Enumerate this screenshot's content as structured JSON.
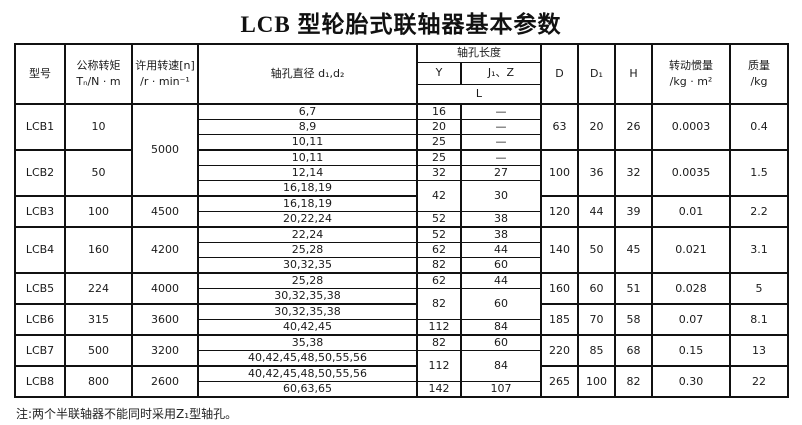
{
  "page": {
    "title": "LCB 型轮胎式联轴器基本参数",
    "note": "注:两个半联轴器不能同时采用Z₁型轴孔。"
  },
  "table": {
    "headers": {
      "model": "型号",
      "torque_l1": "公称转矩",
      "torque_l2": "Tₙ/N · m",
      "speed_l1": "许用转速[n]",
      "speed_l2": "/r · min⁻¹",
      "bore_diameter": "轴孔直径 d₁,d₂",
      "bore_length": "轴孔长度",
      "col_Y": "Y",
      "col_J1Z": "J₁、Z",
      "col_L": "L",
      "col_D": "D",
      "col_D1": "D₁",
      "col_H": "H",
      "inertia_l1": "转动惯量",
      "inertia_l2": "/kg · m²",
      "mass_l1": "质量",
      "mass_l2": "/kg"
    },
    "groups": [
      {
        "model": "LCB1",
        "torque": "10",
        "speed": "5000",
        "speed_span": 6,
        "D": "63",
        "D1": "20",
        "H": "26",
        "inertia": "0.0003",
        "mass": "0.4",
        "rows": [
          {
            "d": "6,7",
            "Y": "16",
            "J": "—"
          },
          {
            "d": "8,9",
            "Y": "20",
            "J": "—"
          },
          {
            "d": "10,11",
            "Y": "25",
            "J": "—"
          }
        ]
      },
      {
        "model": "LCB2",
        "torque": "50",
        "speed": null,
        "D": "100",
        "D1": "36",
        "H": "32",
        "inertia": "0.0035",
        "mass": "1.5",
        "rows": [
          {
            "d": "10,11",
            "Y": "25",
            "J": "—"
          },
          {
            "d": "12,14",
            "Y": "32",
            "J": "27"
          },
          {
            "d": "16,18,19",
            "Y": "42",
            "J": "30",
            "yj_span": 2
          }
        ]
      },
      {
        "model": "LCB3",
        "torque": "100",
        "speed": "4500",
        "D": "120",
        "D1": "44",
        "H": "39",
        "inertia": "0.01",
        "mass": "2.2",
        "rows": [
          {
            "d": "16,18,19",
            "yj_merged": true
          },
          {
            "d": "20,22,24",
            "Y": "52",
            "J": "38"
          }
        ]
      },
      {
        "model": "LCB4",
        "torque": "160",
        "speed": "4200",
        "D": "140",
        "D1": "50",
        "H": "45",
        "inertia": "0.021",
        "mass": "3.1",
        "rows": [
          {
            "d": "22,24",
            "Y": "52",
            "J": "38"
          },
          {
            "d": "25,28",
            "Y": "62",
            "J": "44"
          },
          {
            "d": "30,32,35",
            "Y": "82",
            "J": "60"
          }
        ]
      },
      {
        "model": "LCB5",
        "torque": "224",
        "speed": "4000",
        "D": "160",
        "D1": "60",
        "H": "51",
        "inertia": "0.028",
        "mass": "5",
        "rows": [
          {
            "d": "25,28",
            "Y": "62",
            "J": "44"
          },
          {
            "d": "30,32,35,38",
            "Y": "82",
            "J": "60",
            "yj_span": 2
          }
        ]
      },
      {
        "model": "LCB6",
        "torque": "315",
        "speed": "3600",
        "D": "185",
        "D1": "70",
        "H": "58",
        "inertia": "0.07",
        "mass": "8.1",
        "rows": [
          {
            "d": "30,32,35,38",
            "yj_merged": true
          },
          {
            "d": "40,42,45",
            "Y": "112",
            "J": "84"
          }
        ]
      },
      {
        "model": "LCB7",
        "torque": "500",
        "speed": "3200",
        "D": "220",
        "D1": "85",
        "H": "68",
        "inertia": "0.15",
        "mass": "13",
        "rows": [
          {
            "d": "35,38",
            "Y": "82",
            "J": "60"
          },
          {
            "d": "40,42,45,48,50,55,56",
            "Y": "112",
            "J": "84",
            "yj_span": 2
          }
        ]
      },
      {
        "model": "LCB8",
        "torque": "800",
        "speed": "2600",
        "D": "265",
        "D1": "100",
        "H": "82",
        "inertia": "0.30",
        "mass": "22",
        "rows": [
          {
            "d": "40,42,45,48,50,55,56",
            "yj_merged": true
          },
          {
            "d": "60,63,65",
            "Y": "142",
            "J": "107"
          }
        ]
      }
    ]
  }
}
